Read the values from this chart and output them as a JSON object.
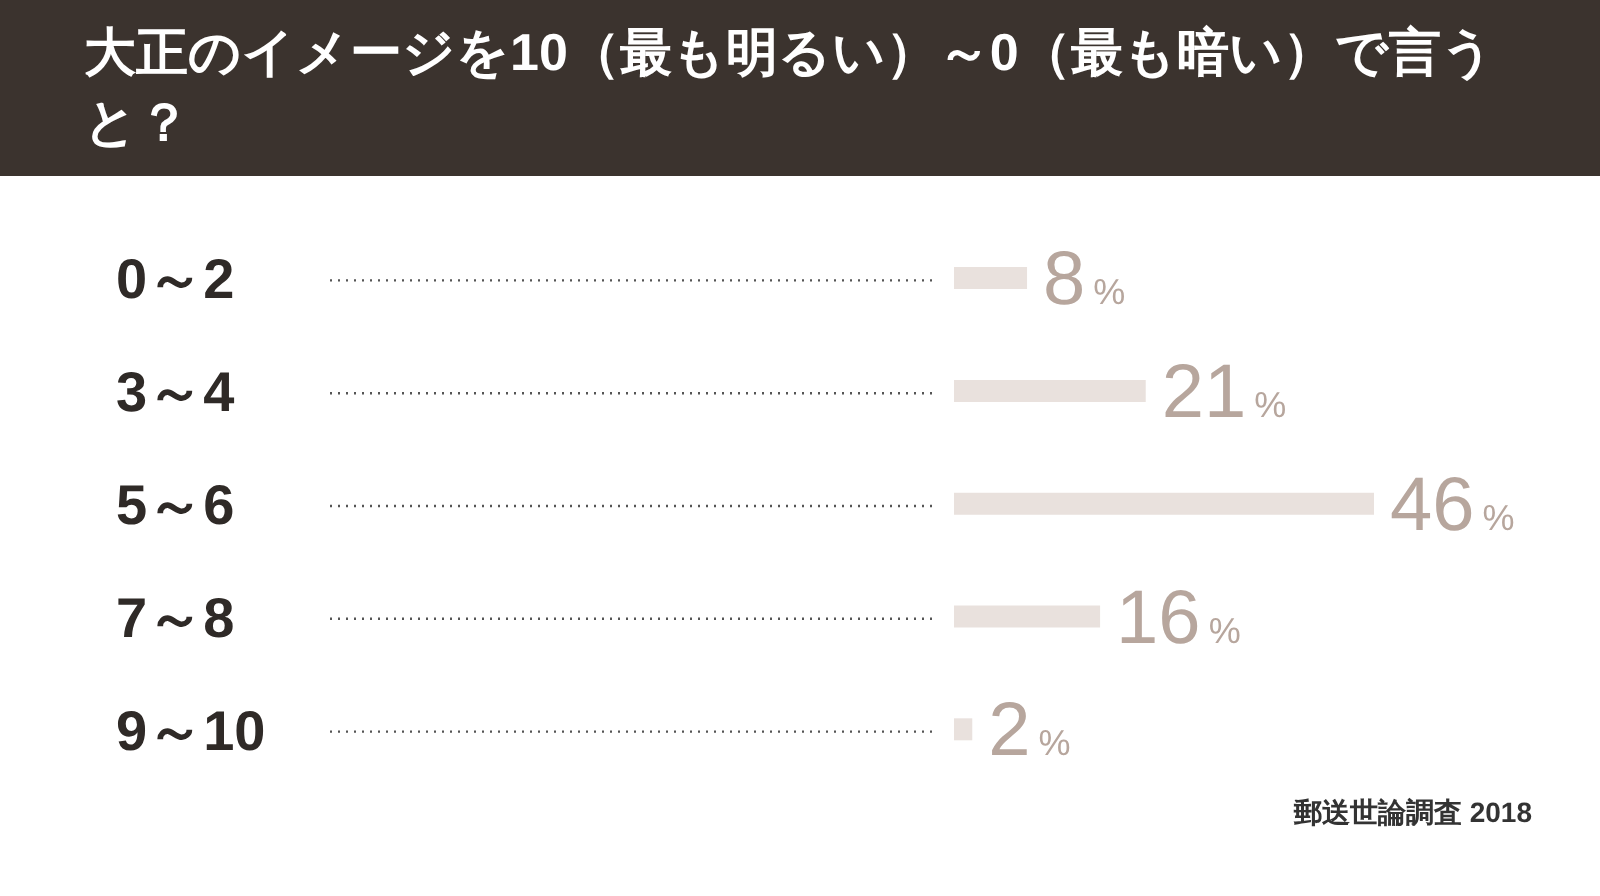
{
  "chart_data": {
    "type": "bar",
    "orientation": "horizontal",
    "title": "大正のイメージを10（最も明るい）～0（最も暗い）で言うと？",
    "categories": [
      "0～2",
      "3～4",
      "5～6",
      "7～8",
      "9～10"
    ],
    "values": [
      8,
      21,
      46,
      16,
      2
    ],
    "color": "#e9e1dd",
    "value_labels": [
      "8%",
      "21%",
      "46%",
      "16%",
      "2%"
    ],
    "annotations": [
      "郵送世論調査 2018"
    ]
  }
}
